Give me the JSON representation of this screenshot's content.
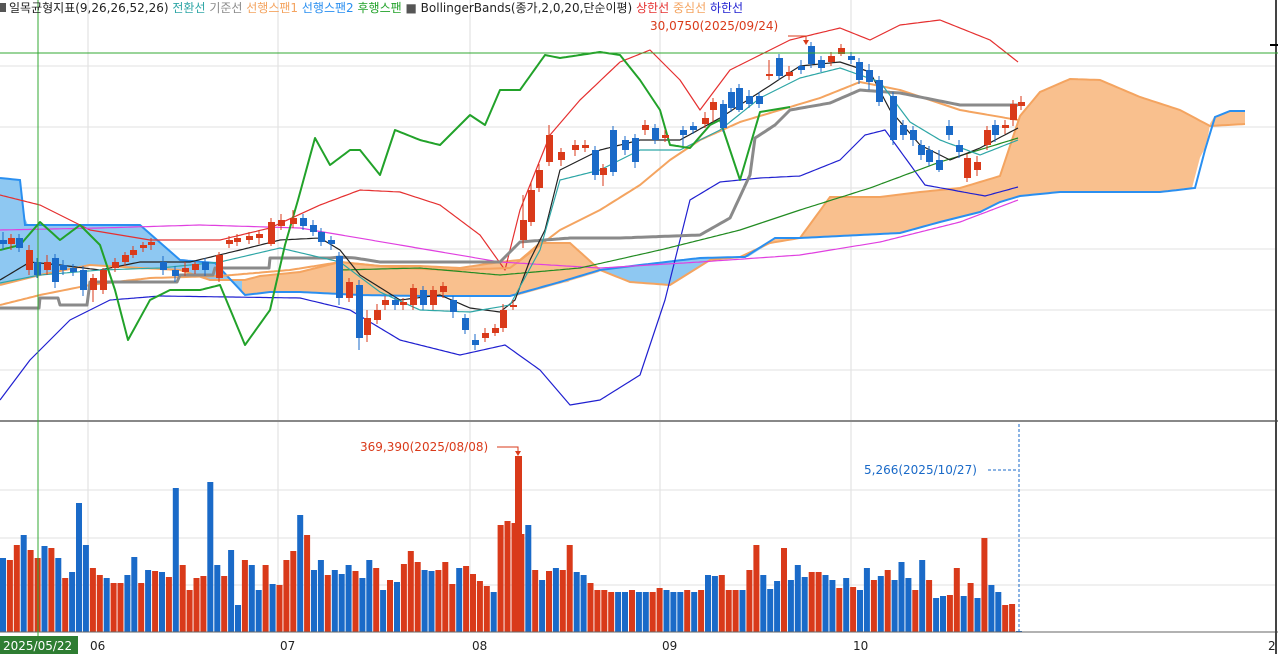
{
  "legend": {
    "ichimoku": {
      "name": "일목균형지표(9,26,26,52,26)",
      "items": [
        {
          "label": "전환선",
          "color": "#2ea6a6"
        },
        {
          "label": "기준선",
          "color": "#8a8a8a"
        },
        {
          "label": "선행스팬1",
          "color": "#f4a460"
        },
        {
          "label": "선행스팬2",
          "color": "#2a8ff0"
        },
        {
          "label": "후행스팬",
          "color": "#22a22a"
        }
      ]
    },
    "bollinger": {
      "name": "BollingerBands(종가,2,0,20,단순이평)",
      "items": [
        {
          "label": "상한선",
          "color": "#e53030"
        },
        {
          "label": "중심선",
          "color": "#f4a460"
        },
        {
          "label": "하한선",
          "color": "#2020d0"
        }
      ]
    }
  },
  "annotations": {
    "price_high": "30,0750(2025/09/24)",
    "volume_high": "369,390(2025/08/08)",
    "volume_last": "5,266(2025/10/27)"
  },
  "x_axis": {
    "cursor_date": "2025/05/22",
    "months": [
      "06",
      "07",
      "08",
      "09",
      "10"
    ],
    "right_edge": "2"
  },
  "colors": {
    "up": "#d93a1a",
    "down": "#1a6ac8",
    "cloud_bull": "#f9c08e",
    "cloud_bear": "#8ec8f2",
    "ma": "#e040e0",
    "ma_long": "#228b22",
    "crosshair": "#33a833"
  },
  "chart_data": {
    "type": "candlestick",
    "period": "2025/05 – 2025/10 daily",
    "highest_close": {
      "date": "2025/09/24",
      "value": "30,0750"
    },
    "volume_peaks": [
      {
        "date": "2025/08/08",
        "value": "369,390"
      },
      {
        "date": "2025/10/27",
        "value": "5,266"
      }
    ],
    "months": [
      "06",
      "07",
      "08",
      "09",
      "10"
    ],
    "grid": true
  }
}
